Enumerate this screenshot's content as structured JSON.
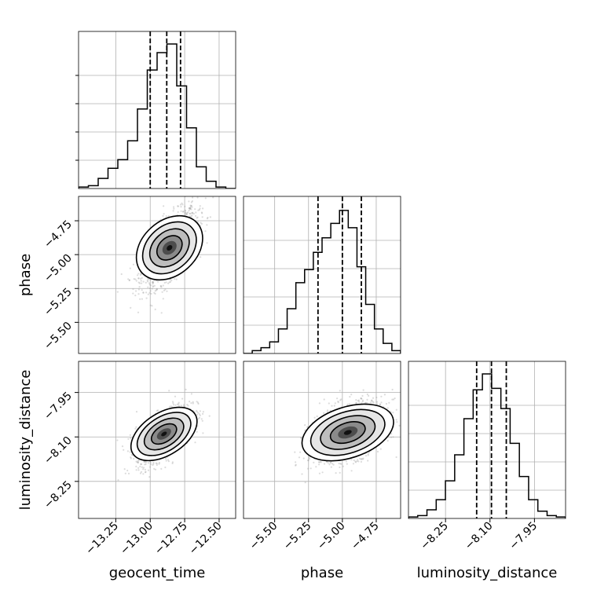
{
  "chart_data": {
    "type": "corner",
    "parameters": [
      "geocent_time",
      "phase",
      "luminosity_distance"
    ],
    "axis_labels": {
      "geocent_time": "geocent_time",
      "phase": "phase",
      "luminosity_distance": "luminosity_distance"
    },
    "ranges": {
      "geocent_time": [
        -13.52,
        -12.38
      ],
      "phase": [
        -5.73,
        -4.57
      ],
      "luminosity_distance": [
        -8.375,
        -7.845
      ]
    },
    "ticks": {
      "geocent_time": {
        "values": [
          -13.25,
          -13.0,
          -12.75,
          -12.5
        ],
        "labels": [
          "−13.25",
          "−13.00",
          "−12.75",
          "−12.50"
        ]
      },
      "phase": {
        "values": [
          -5.5,
          -5.25,
          -5.0,
          -4.75
        ],
        "labels": [
          "−5.50",
          "−5.25",
          "−5.00",
          "−4.75"
        ]
      },
      "luminosity_distance": {
        "values": [
          -8.25,
          -8.1,
          -7.95
        ],
        "labels": [
          "−8.25",
          "−8.10",
          "−7.95"
        ]
      }
    },
    "quantiles": {
      "geocent_time": [
        -13.0,
        -12.88,
        -12.78
      ],
      "phase": [
        -5.18,
        -5.0,
        -4.86
      ],
      "luminosity_distance": [
        -8.145,
        -8.095,
        -8.045
      ]
    },
    "histograms": {
      "geocent_time": [
        0.01,
        0.02,
        0.07,
        0.14,
        0.2,
        0.33,
        0.55,
        0.82,
        0.94,
        1.0,
        0.71,
        0.42,
        0.15,
        0.05,
        0.01,
        0.0
      ],
      "phase": [
        0.0,
        0.02,
        0.04,
        0.08,
        0.17,
        0.31,
        0.49,
        0.58,
        0.7,
        0.8,
        0.9,
        0.99,
        0.87,
        0.6,
        0.34,
        0.17,
        0.07,
        0.02
      ],
      "luminosity_distance": [
        0.01,
        0.02,
        0.06,
        0.13,
        0.26,
        0.44,
        0.69,
        0.89,
        1.0,
        0.9,
        0.76,
        0.52,
        0.29,
        0.13,
        0.05,
        0.02,
        0.01
      ]
    },
    "pairs": [
      {
        "x": "geocent_time",
        "y": "phase",
        "center": [
          -12.86,
          -4.95
        ],
        "sd": [
          0.1,
          0.14
        ],
        "corr": 0.65
      },
      {
        "x": "geocent_time",
        "y": "luminosity_distance",
        "center": [
          -12.9,
          -8.09
        ],
        "sd": [
          0.1,
          0.048
        ],
        "corr": 0.62
      },
      {
        "x": "phase",
        "y": "luminosity_distance",
        "center": [
          -4.96,
          -8.085
        ],
        "sd": [
          0.14,
          0.05
        ],
        "corr": 0.42
      }
    ],
    "grid": true,
    "legend": "none"
  }
}
